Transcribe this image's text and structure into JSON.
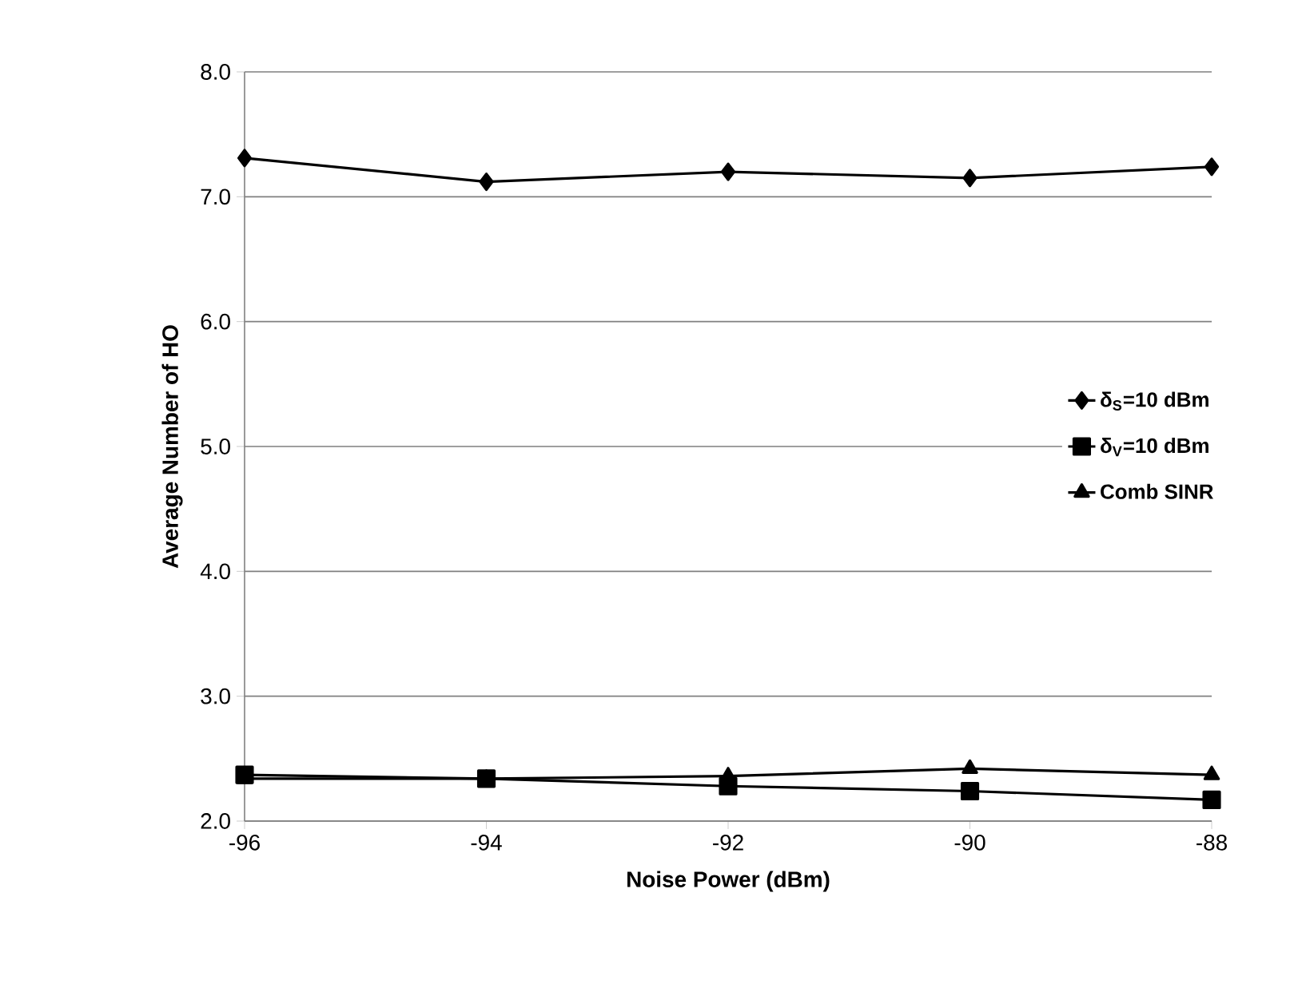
{
  "chart_data": {
    "type": "line",
    "xlabel": "Noise Power (dBm)",
    "ylabel": "Average Number of HO",
    "x": [
      -96,
      -94,
      -92,
      -90,
      -88
    ],
    "series": [
      {
        "name": "δ$_{S}$=10 dBm",
        "color": "#000000",
        "marker": "diamond",
        "values": [
          7.31,
          7.12,
          7.2,
          7.15,
          7.24
        ]
      },
      {
        "name": "δ$_{V}$=10 dBm",
        "color": "#000000",
        "marker": "square",
        "values": [
          2.37,
          2.34,
          2.28,
          2.24,
          2.17
        ]
      },
      {
        "name": "Comb SINR",
        "color": "#000000",
        "marker": "triangle",
        "values": [
          2.34,
          2.34,
          2.36,
          2.42,
          2.37
        ]
      }
    ],
    "xlim": [
      -96,
      -88
    ],
    "xticks": [
      -96,
      -94,
      -92,
      -90,
      -88
    ],
    "ylim": [
      2,
      8
    ],
    "yticks": [
      {
        "value": 2,
        "label": "2.0"
      },
      {
        "value": 3,
        "label": "3.0"
      },
      {
        "value": 4,
        "label": "4.0"
      },
      {
        "value": 5,
        "label": "5.0"
      },
      {
        "value": 6,
        "label": "6.0"
      },
      {
        "value": 7,
        "label": "7.0"
      },
      {
        "value": 8,
        "label": "8.0"
      }
    ],
    "grid": "y",
    "legend": "right",
    "line_style": "solid"
  }
}
